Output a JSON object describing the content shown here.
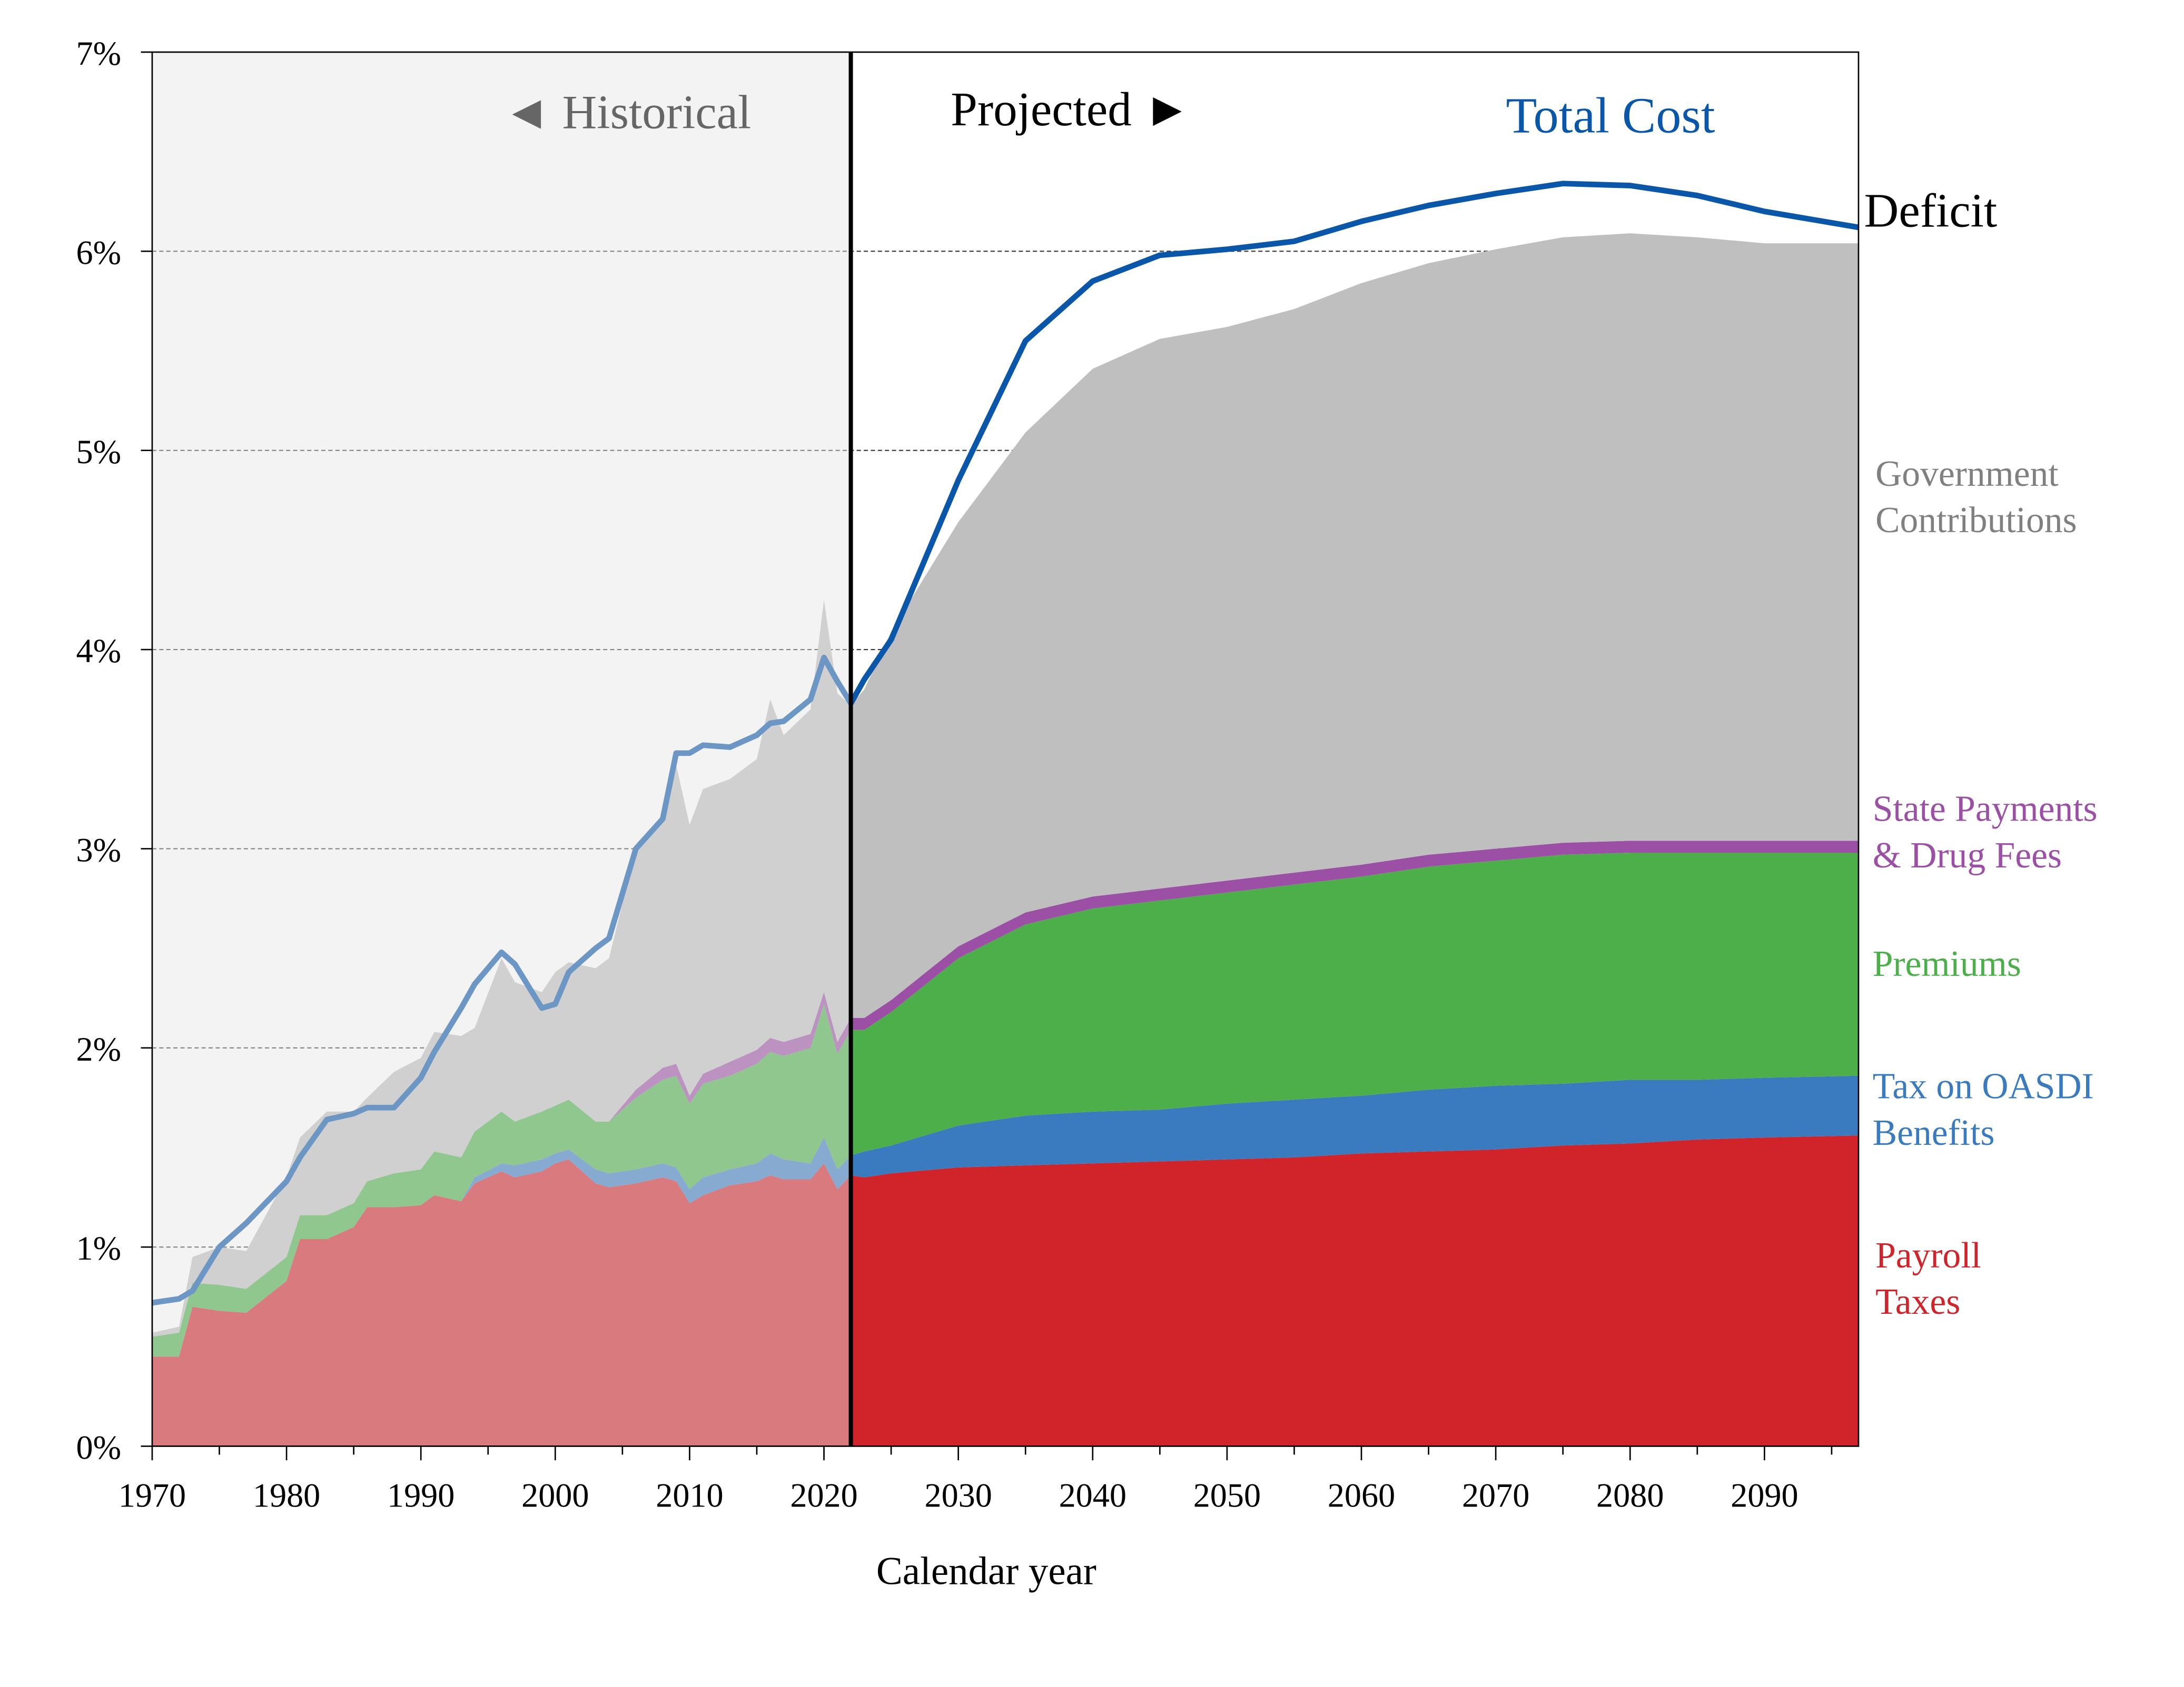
{
  "chart_data": {
    "type": "area",
    "xlabel": "Calendar year",
    "ylabel": "",
    "xlim": [
      1970,
      2097
    ],
    "ylim": [
      0,
      7
    ],
    "y_ticks": [
      "0%",
      "1%",
      "2%",
      "3%",
      "4%",
      "5%",
      "6%",
      "7%"
    ],
    "x_ticks": [
      "1970",
      "1980",
      "1990",
      "2000",
      "2010",
      "2020",
      "2030",
      "2040",
      "2050",
      "2060",
      "2070",
      "2080",
      "2090"
    ],
    "grid": "horizontal dashed",
    "stacked": true,
    "historical_label": "◄ Historical",
    "projected_label": "Projected ►",
    "last_historical_year": 2022,
    "x": [
      1970,
      1972,
      1973,
      1975,
      1977,
      1980,
      1981,
      1983,
      1985,
      1986,
      1988,
      1990,
      1991,
      1993,
      1994,
      1996,
      1997,
      1999,
      2000,
      2001,
      2003,
      2004,
      2006,
      2008,
      2009,
      2010,
      2011,
      2013,
      2015,
      2016,
      2017,
      2019,
      2020,
      2021,
      2022,
      2023,
      2025,
      2030,
      2035,
      2040,
      2045,
      2050,
      2055,
      2060,
      2065,
      2070,
      2075,
      2080,
      2085,
      2090,
      2097
    ],
    "series": [
      {
        "name": "Payroll Taxes",
        "label_lines": [
          "Payroll",
          "Taxes"
        ],
        "color": "#d0232a",
        "values": [
          0.45,
          0.45,
          0.7,
          0.68,
          0.67,
          0.83,
          1.04,
          1.04,
          1.1,
          1.2,
          1.2,
          1.21,
          1.26,
          1.23,
          1.32,
          1.38,
          1.35,
          1.38,
          1.42,
          1.44,
          1.32,
          1.3,
          1.32,
          1.35,
          1.33,
          1.22,
          1.26,
          1.31,
          1.33,
          1.36,
          1.34,
          1.34,
          1.42,
          1.29,
          1.36,
          1.35,
          1.37,
          1.4,
          1.41,
          1.42,
          1.43,
          1.44,
          1.45,
          1.47,
          1.48,
          1.49,
          1.51,
          1.52,
          1.54,
          1.55,
          1.56
        ]
      },
      {
        "name": "Tax on OASDI Benefits",
        "label_lines": [
          "Tax on OASDI",
          "Benefits"
        ],
        "color": "#3a7bbf",
        "values": [
          0,
          0,
          0,
          0,
          0,
          0,
          0,
          0,
          0,
          0,
          0,
          0,
          0,
          0,
          0.03,
          0.04,
          0.06,
          0.06,
          0.05,
          0.05,
          0.07,
          0.07,
          0.07,
          0.07,
          0.07,
          0.07,
          0.09,
          0.08,
          0.09,
          0.11,
          0.1,
          0.08,
          0.13,
          0.1,
          0.1,
          0.13,
          0.14,
          0.21,
          0.25,
          0.26,
          0.26,
          0.28,
          0.29,
          0.29,
          0.31,
          0.32,
          0.31,
          0.32,
          0.3,
          0.3,
          0.3
        ]
      },
      {
        "name": "Premiums",
        "label_lines": [
          "Premiums"
        ],
        "color": "#4caf4a",
        "values": [
          0.1,
          0.12,
          0.12,
          0.13,
          0.12,
          0.12,
          0.12,
          0.12,
          0.12,
          0.13,
          0.17,
          0.18,
          0.22,
          0.22,
          0.23,
          0.26,
          0.22,
          0.24,
          0.24,
          0.25,
          0.24,
          0.26,
          0.36,
          0.42,
          0.46,
          0.43,
          0.47,
          0.47,
          0.5,
          0.51,
          0.52,
          0.58,
          0.67,
          0.58,
          0.63,
          0.61,
          0.67,
          0.84,
          0.96,
          1.02,
          1.05,
          1.06,
          1.08,
          1.1,
          1.12,
          1.13,
          1.15,
          1.14,
          1.14,
          1.13,
          1.12
        ]
      },
      {
        "name": "State Payments & Drug Fees",
        "label_lines": [
          "State Payments",
          "& Drug Fees"
        ],
        "color": "#9b4fa5",
        "values": [
          0,
          0,
          0,
          0,
          0,
          0,
          0,
          0,
          0,
          0,
          0,
          0,
          0,
          0,
          0,
          0,
          0,
          0,
          0,
          0,
          0,
          0,
          0.04,
          0.06,
          0.06,
          0.04,
          0.05,
          0.07,
          0.07,
          0.07,
          0.07,
          0.07,
          0.06,
          0.06,
          0.06,
          0.06,
          0.06,
          0.06,
          0.06,
          0.06,
          0.06,
          0.06,
          0.06,
          0.06,
          0.06,
          0.06,
          0.06,
          0.06,
          0.06,
          0.06,
          0.06
        ]
      },
      {
        "name": "Government Contributions",
        "label_lines": [
          "Government",
          "Contributions"
        ],
        "color": "#bfbfbf",
        "values": [
          0.02,
          0.03,
          0.13,
          0.19,
          0.19,
          0.4,
          0.39,
          0.52,
          0.46,
          0.42,
          0.51,
          0.56,
          0.6,
          0.61,
          0.52,
          0.77,
          0.7,
          0.6,
          0.67,
          0.69,
          0.77,
          0.82,
          1.21,
          1.25,
          1.5,
          1.36,
          1.43,
          1.42,
          1.46,
          1.7,
          1.54,
          1.63,
          1.97,
          1.75,
          1.57,
          1.65,
          1.85,
          2.13,
          2.41,
          2.65,
          2.76,
          2.78,
          2.83,
          2.92,
          2.97,
          3.01,
          3.04,
          3.05,
          3.03,
          3.0,
          3.0
        ]
      }
    ],
    "lines": [
      {
        "name": "Total Cost",
        "color": "#0a56a8",
        "values": [
          0.72,
          0.74,
          0.78,
          1.0,
          1.12,
          1.33,
          1.45,
          1.64,
          1.67,
          1.7,
          1.7,
          1.85,
          1.98,
          2.2,
          2.32,
          2.48,
          2.42,
          2.2,
          2.22,
          2.38,
          2.5,
          2.55,
          3.0,
          3.15,
          3.48,
          3.48,
          3.52,
          3.51,
          3.57,
          3.63,
          3.64,
          3.75,
          3.96,
          3.84,
          3.73,
          3.85,
          4.05,
          4.85,
          5.55,
          5.85,
          5.98,
          6.01,
          6.05,
          6.15,
          6.23,
          6.29,
          6.34,
          6.33,
          6.28,
          6.2,
          6.12
        ]
      }
    ],
    "annotations": {
      "deficit": "Deficit"
    }
  }
}
